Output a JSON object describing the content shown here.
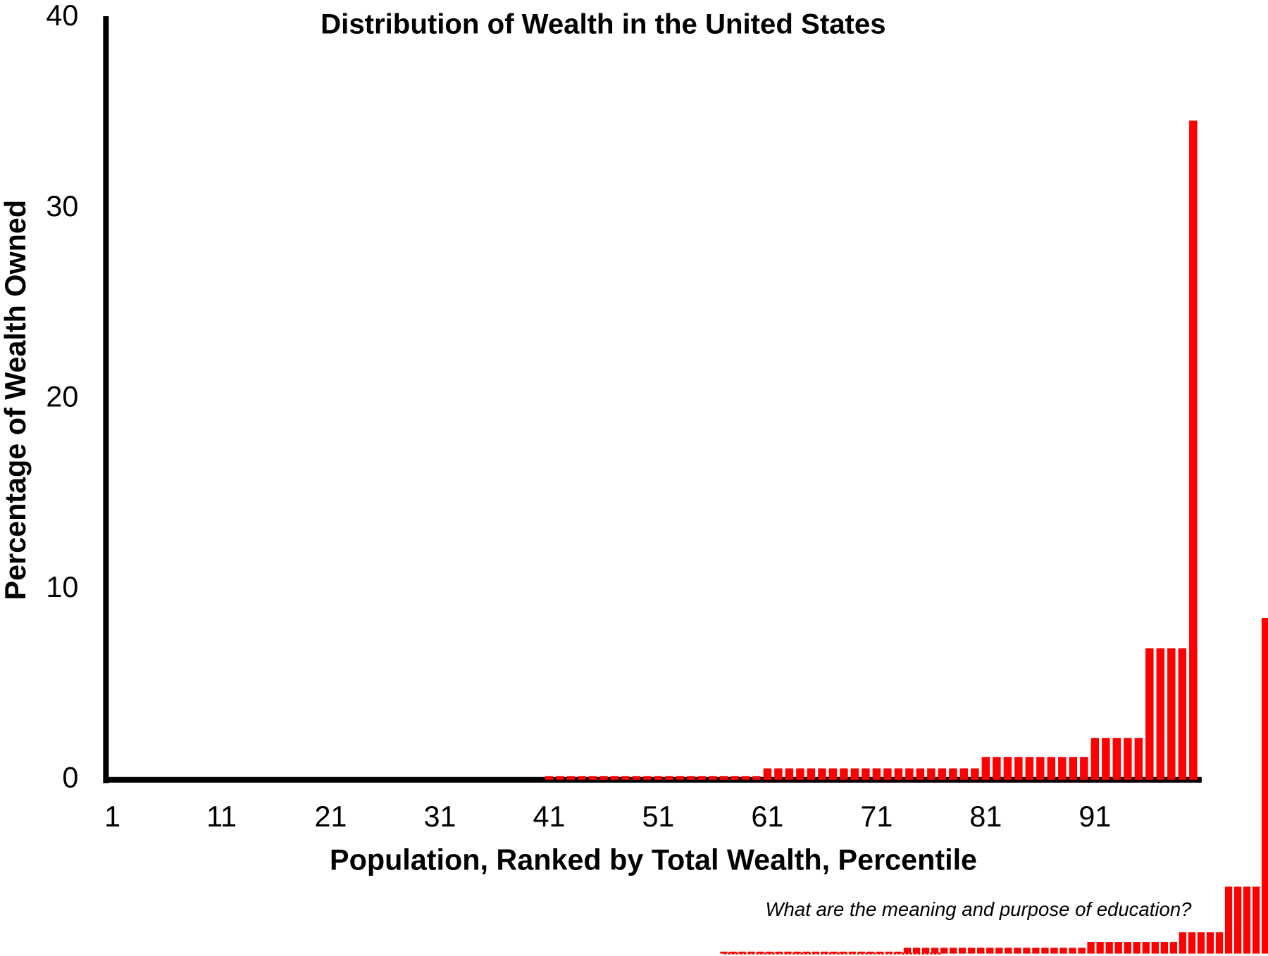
{
  "chart_data": {
    "type": "bar",
    "title": "Distribution of Wealth in the United States",
    "x_label": "Population, Ranked by Total Wealth, Percentile",
    "y_label": "Percentage of Wealth Owned",
    "annotation": "What are the meaning and purpose of education?",
    "color": "#ff0000",
    "categories": [
      "1",
      null,
      null,
      null,
      null,
      null,
      null,
      null,
      null,
      null,
      "11",
      null,
      null,
      null,
      null,
      null,
      null,
      null,
      null,
      null,
      "21",
      null,
      null,
      null,
      null,
      null,
      null,
      null,
      null,
      null,
      "31",
      null,
      null,
      null,
      null,
      null,
      null,
      null,
      null,
      null,
      "41",
      null,
      null,
      null,
      null,
      null,
      null,
      null,
      null,
      null,
      "51",
      null,
      null,
      null,
      null,
      null,
      null,
      null,
      null,
      null,
      "61",
      null,
      null,
      null,
      null,
      null,
      null,
      null,
      null,
      null,
      "71",
      null,
      null,
      null,
      null,
      null,
      null,
      null,
      null,
      null,
      "81",
      null,
      null,
      null,
      null,
      null,
      null,
      null,
      null,
      null,
      "91",
      null,
      null,
      null,
      null,
      null,
      null,
      null,
      null,
      null
    ],
    "values": [
      0,
      0,
      0,
      0,
      0,
      0,
      0,
      0,
      0,
      0,
      0,
      0,
      0,
      0,
      0,
      0,
      0,
      0,
      0,
      0,
      0,
      0,
      0,
      0,
      0,
      0,
      0,
      0,
      0,
      0,
      0,
      0,
      0,
      0,
      0,
      0,
      0,
      0,
      0,
      0,
      0.2,
      0.2,
      0.2,
      0.2,
      0.2,
      0.2,
      0.2,
      0.2,
      0.2,
      0.2,
      0.2,
      0.2,
      0.2,
      0.2,
      0.2,
      0.2,
      0.2,
      0.2,
      0.2,
      0.2,
      0.6,
      0.6,
      0.6,
      0.6,
      0.6,
      0.6,
      0.6,
      0.6,
      0.6,
      0.6,
      0.6,
      0.6,
      0.6,
      0.6,
      0.6,
      0.6,
      0.6,
      0.6,
      0.6,
      0.6,
      1.2,
      1.2,
      1.2,
      1.2,
      1.2,
      1.2,
      1.2,
      1.2,
      1.2,
      1.2,
      2.2,
      2.2,
      2.2,
      2.2,
      2.2,
      6.9,
      6.9,
      6.9,
      6.9,
      34.6
    ],
    "ylim": [
      0,
      40
    ],
    "yticks": [
      0,
      10,
      20,
      30,
      40
    ],
    "grid": false
  }
}
